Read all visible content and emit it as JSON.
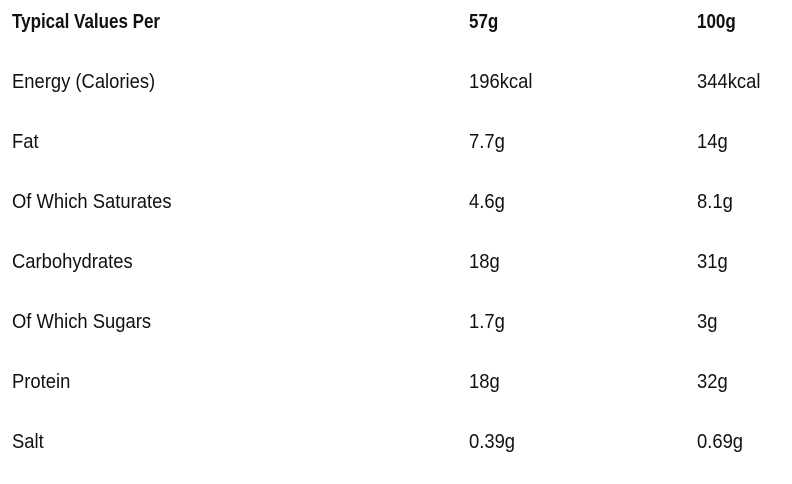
{
  "table": {
    "headers": [
      "Typical Values Per",
      "57g",
      "100g"
    ],
    "rows": [
      [
        "Energy (Calories)",
        "196kcal",
        "344kcal"
      ],
      [
        "Fat",
        "7.7g",
        "14g"
      ],
      [
        "Of Which Saturates",
        "4.6g",
        "8.1g"
      ],
      [
        "Carbohydrates",
        "18g",
        "31g"
      ],
      [
        "Of Which Sugars",
        "1.7g",
        "3g"
      ],
      [
        "Protein",
        "18g",
        "32g"
      ],
      [
        "Salt",
        "0.39g",
        "0.69g"
      ]
    ]
  }
}
